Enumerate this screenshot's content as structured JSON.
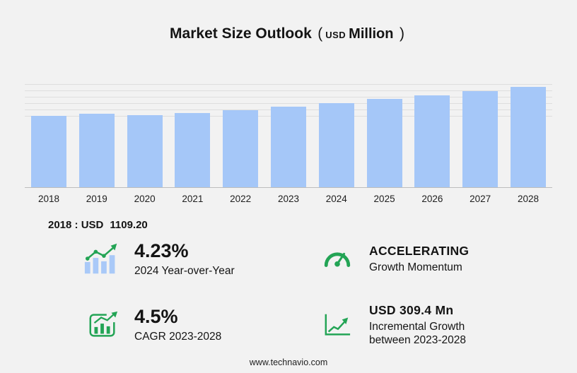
{
  "title": {
    "main": "Market Size Outlook",
    "paren_open": "(",
    "usd": "USD",
    "unit": "Million",
    "paren_close": ")"
  },
  "chart_data": {
    "type": "bar",
    "title": "Market Size Outlook (USD Million)",
    "categories": [
      "2018",
      "2019",
      "2020",
      "2021",
      "2022",
      "2023",
      "2024",
      "2025",
      "2026",
      "2027",
      "2028"
    ],
    "values": [
      1109.2,
      1145,
      1120,
      1150,
      1200,
      1256.8,
      1310,
      1371,
      1433,
      1498,
      1566.2
    ],
    "xlabel": "",
    "ylabel": "",
    "ylim": [
      0,
      1650
    ],
    "gridlines": [
      1100,
      1200,
      1300,
      1400,
      1500,
      1600
    ],
    "bar_color": "#a5c7f8",
    "legend": "none",
    "grid": true
  },
  "market_2018": {
    "label": "2018 : USD",
    "value": "1109.20"
  },
  "stats": {
    "yoy": {
      "value": "4.23%",
      "label": "2024 Year-over-Year"
    },
    "momentum": {
      "value": "ACCELERATING",
      "label": "Growth Momentum"
    },
    "cagr": {
      "value": "4.5%",
      "label": "CAGR 2023-2028"
    },
    "incremental": {
      "value": "USD 309.4 Mn",
      "label_line1": "Incremental Growth",
      "label_line2": "between 2023-2028"
    }
  },
  "footer": {
    "url": "www.technavio.com"
  },
  "colors": {
    "green": "#23a455",
    "bar_blue": "#a5c7f8",
    "background": "#f2f2f2"
  }
}
